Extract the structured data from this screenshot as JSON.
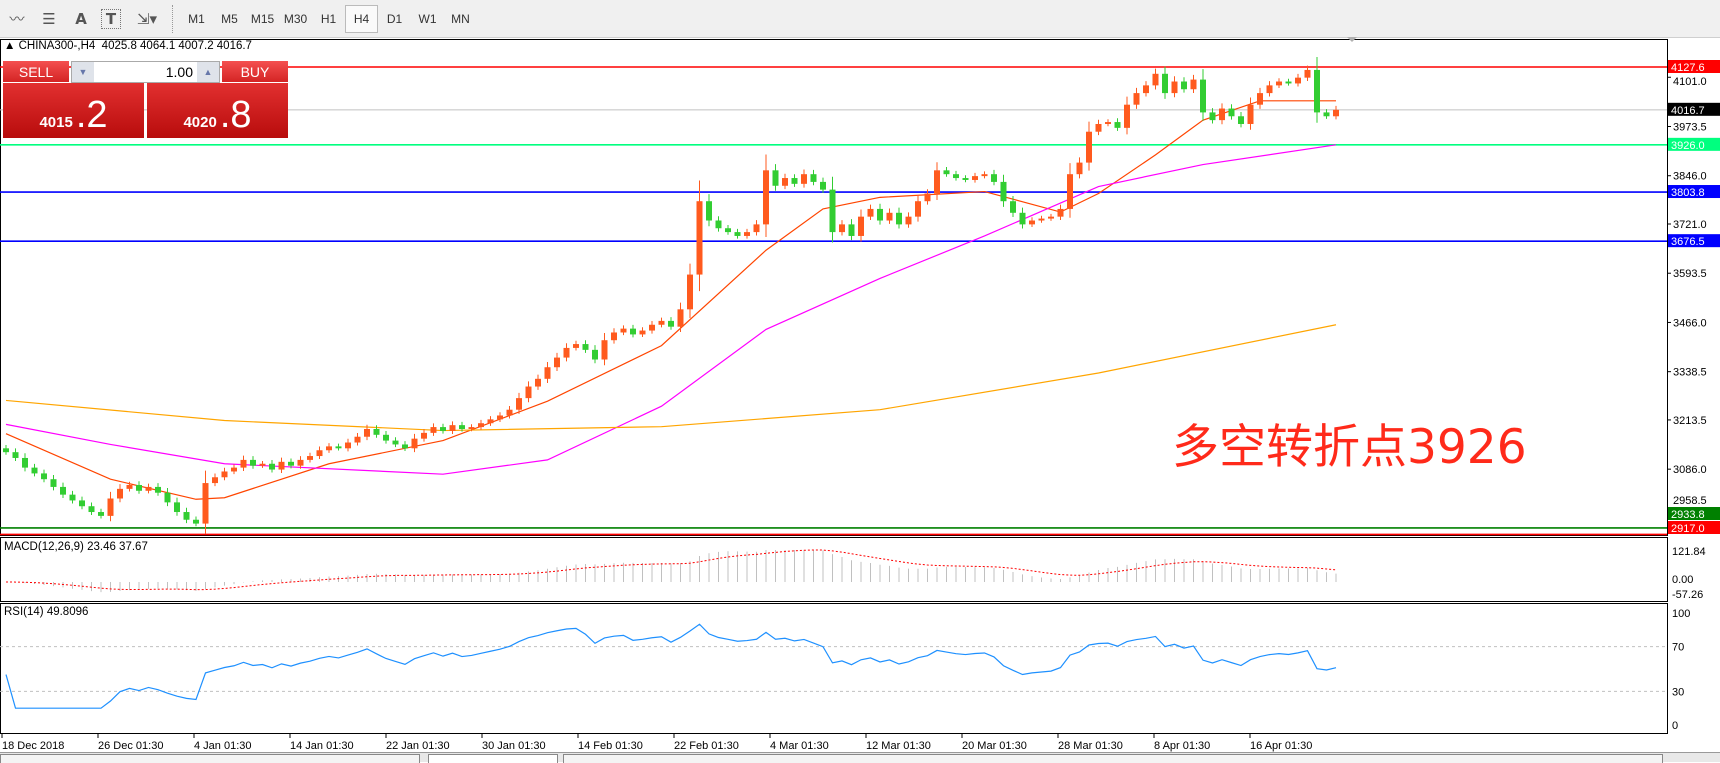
{
  "toolbar": {
    "icons": [
      "elliott-wave-icon",
      "fibonacci-icon",
      "text-icon",
      "text-label-icon",
      "arrows-icon"
    ],
    "text_icon_glyph": "A",
    "label_icon_glyph": "T",
    "timeframes": [
      "M1",
      "M5",
      "M15",
      "M30",
      "H1",
      "H4",
      "D1",
      "W1",
      "MN"
    ],
    "active_timeframe": "H4"
  },
  "header": {
    "symbol": "CHINA300-,H4",
    "ohlc": "4025.8 4064.1 4007.2 4016.7"
  },
  "trade_panel": {
    "sell_label": "SELL",
    "buy_label": "BUY",
    "lot": "1.00",
    "sell_price_main": "4015",
    "sell_price_big": ".2",
    "buy_price_main": "4020",
    "buy_price_big": ".8"
  },
  "annotation": "多空转折点3926",
  "colors": {
    "up": "#ff5a1e",
    "down": "#32cd32",
    "ma_fast": "#ff4500",
    "ma_mid": "#ff00ff",
    "ma_slow": "#ffa500",
    "rsi": "#1e90ff",
    "macd_signal": "#ff0000",
    "macd_hist": "#c0c0c0"
  },
  "chart_data": {
    "type": "candlestick",
    "symbol": "CHINA300-",
    "timeframe": "H4",
    "price_ticks": [
      4101.0,
      3973.5,
      3846.0,
      3721.0,
      3593.5,
      3466.0,
      3338.5,
      3213.5,
      3086.0,
      2958.5
    ],
    "time_labels": [
      "18 Dec 2018",
      "26 Dec 01:30",
      "4 Jan 01:30",
      "14 Jan 01:30",
      "22 Jan 01:30",
      "30 Jan 01:30",
      "14 Feb 01:30",
      "22 Feb 01:30",
      "4 Mar 01:30",
      "12 Mar 01:30",
      "20 Mar 01:30",
      "28 Mar 01:30",
      "8 Apr 01:30",
      "16 Apr 01:30"
    ],
    "closes": [
      3130,
      3115,
      3090,
      3075,
      3060,
      3040,
      3020,
      3005,
      2990,
      2975,
      2965,
      3010,
      3035,
      3045,
      3030,
      3040,
      3025,
      3000,
      2975,
      2955,
      2945,
      3050,
      3065,
      3080,
      3090,
      3110,
      3095,
      3100,
      3085,
      3105,
      3095,
      3110,
      3120,
      3135,
      3145,
      3140,
      3155,
      3170,
      3190,
      3175,
      3160,
      3150,
      3140,
      3165,
      3180,
      3195,
      3185,
      3200,
      3190,
      3195,
      3205,
      3215,
      3225,
      3240,
      3270,
      3300,
      3320,
      3350,
      3375,
      3400,
      3410,
      3395,
      3370,
      3420,
      3440,
      3450,
      3435,
      3445,
      3460,
      3470,
      3455,
      3500,
      3590,
      3780,
      3730,
      3710,
      3700,
      3690,
      3700,
      3720,
      3860,
      3820,
      3840,
      3825,
      3850,
      3830,
      3810,
      3700,
      3720,
      3690,
      3740,
      3760,
      3730,
      3750,
      3720,
      3740,
      3780,
      3800,
      3860,
      3850,
      3840,
      3835,
      3845,
      3850,
      3830,
      3780,
      3750,
      3720,
      3730,
      3735,
      3740,
      3760,
      3850,
      3880,
      3960,
      3980,
      3985,
      3970,
      4030,
      4060,
      4080,
      4110,
      4060,
      4090,
      4070,
      4095,
      4010,
      3990,
      4020,
      4000,
      3980,
      4030,
      4060,
      4080,
      4090,
      4085,
      4100,
      4120,
      4010,
      4000,
      4016.7
    ],
    "moving_averages": [
      {
        "color": "#ff4500",
        "points": [
          [
            0,
            3178
          ],
          [
            11,
            3060
          ],
          [
            20,
            3008
          ],
          [
            23,
            3012
          ],
          [
            34,
            3100
          ],
          [
            46,
            3160
          ],
          [
            57,
            3262
          ],
          [
            69,
            3406
          ],
          [
            80,
            3653
          ],
          [
            86,
            3760
          ],
          [
            92,
            3790
          ],
          [
            103,
            3805
          ],
          [
            111,
            3752
          ],
          [
            115,
            3800
          ],
          [
            121,
            3900
          ],
          [
            126,
            3990
          ],
          [
            132,
            4040
          ],
          [
            140,
            4040
          ]
        ]
      },
      {
        "color": "#ff00ff",
        "points": [
          [
            0,
            3202
          ],
          [
            11,
            3150
          ],
          [
            23,
            3100
          ],
          [
            46,
            3073
          ],
          [
            57,
            3110
          ],
          [
            69,
            3249
          ],
          [
            80,
            3448
          ],
          [
            92,
            3580
          ],
          [
            103,
            3690
          ],
          [
            115,
            3818
          ],
          [
            126,
            3875
          ],
          [
            140,
            3926
          ]
        ]
      },
      {
        "color": "#ffa500",
        "points": [
          [
            0,
            3264
          ],
          [
            23,
            3212
          ],
          [
            46,
            3186
          ],
          [
            69,
            3196
          ],
          [
            92,
            3240
          ],
          [
            115,
            3335
          ],
          [
            140,
            3460
          ]
        ]
      }
    ],
    "horizontal_lines": [
      {
        "price": 4127.6,
        "label": "4127.6",
        "color": "#ff0000",
        "text": "#ffffff"
      },
      {
        "price": 4016.7,
        "label": "4016.7",
        "color": "#c0c0c0",
        "label_bg": "#000000",
        "text": "#ffffff"
      },
      {
        "price": 3926.0,
        "label": "3926.0",
        "color": "#00ff7f",
        "text": "#ffffff"
      },
      {
        "price": 3803.8,
        "label": "3803.8",
        "color": "#0000ff",
        "text": "#ffffff"
      },
      {
        "price": 3676.5,
        "label": "3676.5",
        "color": "#0000ff",
        "text": "#ffffff"
      },
      {
        "price": 2933.8,
        "label": "2933.8",
        "color": "#008000",
        "text": "#ffffff"
      },
      {
        "price": 2917.0,
        "label": "2917.0",
        "color": "#ff0000",
        "text": "#ffffff"
      }
    ],
    "macd": {
      "label": "MACD(12,26,9) 23.46 37.67",
      "ticks": [
        "121.84",
        "0.00",
        "-57.26"
      ],
      "range": [
        -57.26,
        121.84
      ]
    },
    "rsi": {
      "label": "RSI(14) 49.8096",
      "ticks": [
        "100",
        "70",
        "30",
        "0"
      ],
      "levels": [
        70,
        30
      ]
    }
  }
}
